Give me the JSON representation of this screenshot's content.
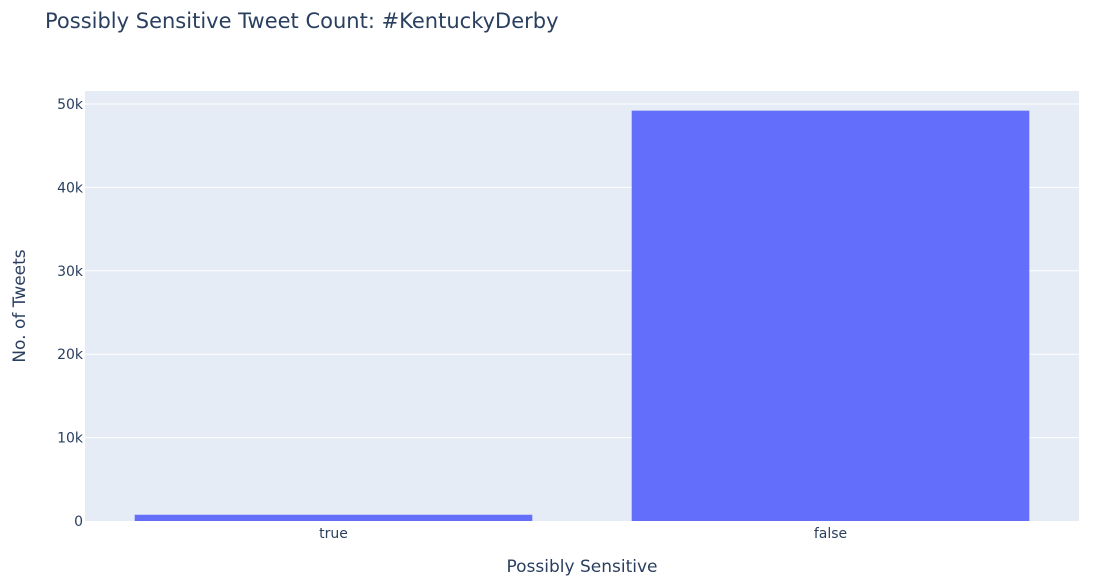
{
  "chart_data": {
    "type": "bar",
    "title": "Possibly Sensitive Tweet Count: #KentuckyDerby",
    "xlabel": "Possibly Sensitive",
    "ylabel": "No. of Tweets",
    "categories": [
      "true",
      "false"
    ],
    "values": [
      750,
      49200
    ],
    "ylim": [
      0,
      50000
    ],
    "y_ticks": [
      0,
      10000,
      20000,
      30000,
      40000,
      50000
    ],
    "y_tick_labels": [
      "0",
      "10k",
      "20k",
      "30k",
      "40k",
      "50k"
    ],
    "grid": true,
    "legend": "none",
    "colors": {
      "bar": "#636efa",
      "plot_background": "#e5ecf6",
      "grid": "#ffffff",
      "text": "#2a3f5f"
    }
  }
}
